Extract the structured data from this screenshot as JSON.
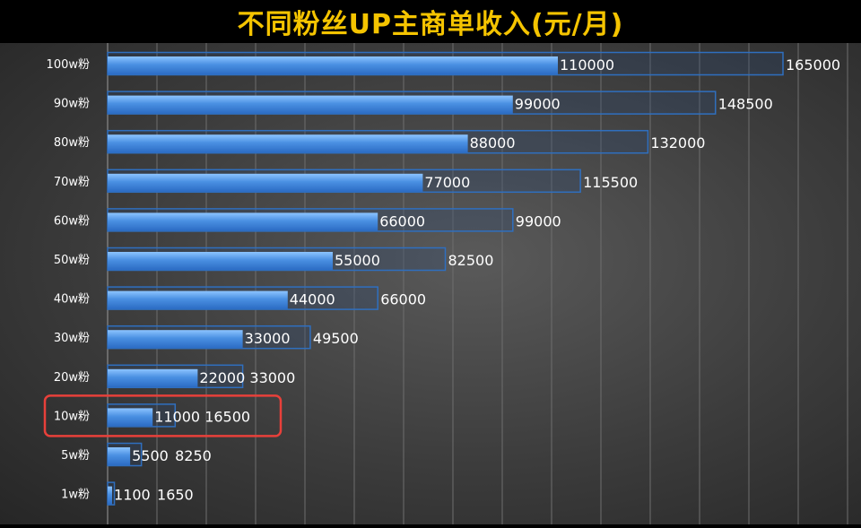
{
  "chart_data": {
    "type": "bar",
    "orientation": "horizontal",
    "title": "不同粉丝UP主商单收入(元/月)",
    "categories": [
      "100w粉",
      "90w粉",
      "80w粉",
      "70w粉",
      "60w粉",
      "50w粉",
      "40w粉",
      "30w粉",
      "20w粉",
      "10w粉",
      "5w粉",
      "1w粉"
    ],
    "series": [
      {
        "values": [
          110000,
          99000,
          88000,
          77000,
          66000,
          55000,
          44000,
          33000,
          22000,
          11000,
          5500,
          1100
        ],
        "color": "#4a90e2"
      },
      {
        "values": [
          165000,
          148500,
          132000,
          115500,
          99000,
          82500,
          66000,
          49500,
          33000,
          16500,
          8250,
          1650
        ],
        "color": "#2f6fbf"
      }
    ],
    "xlim": [
      0,
      165000
    ],
    "grid": true,
    "highlight": {
      "category": "10w粉",
      "color": "#e8403a"
    },
    "title_color": "#f5c400"
  }
}
